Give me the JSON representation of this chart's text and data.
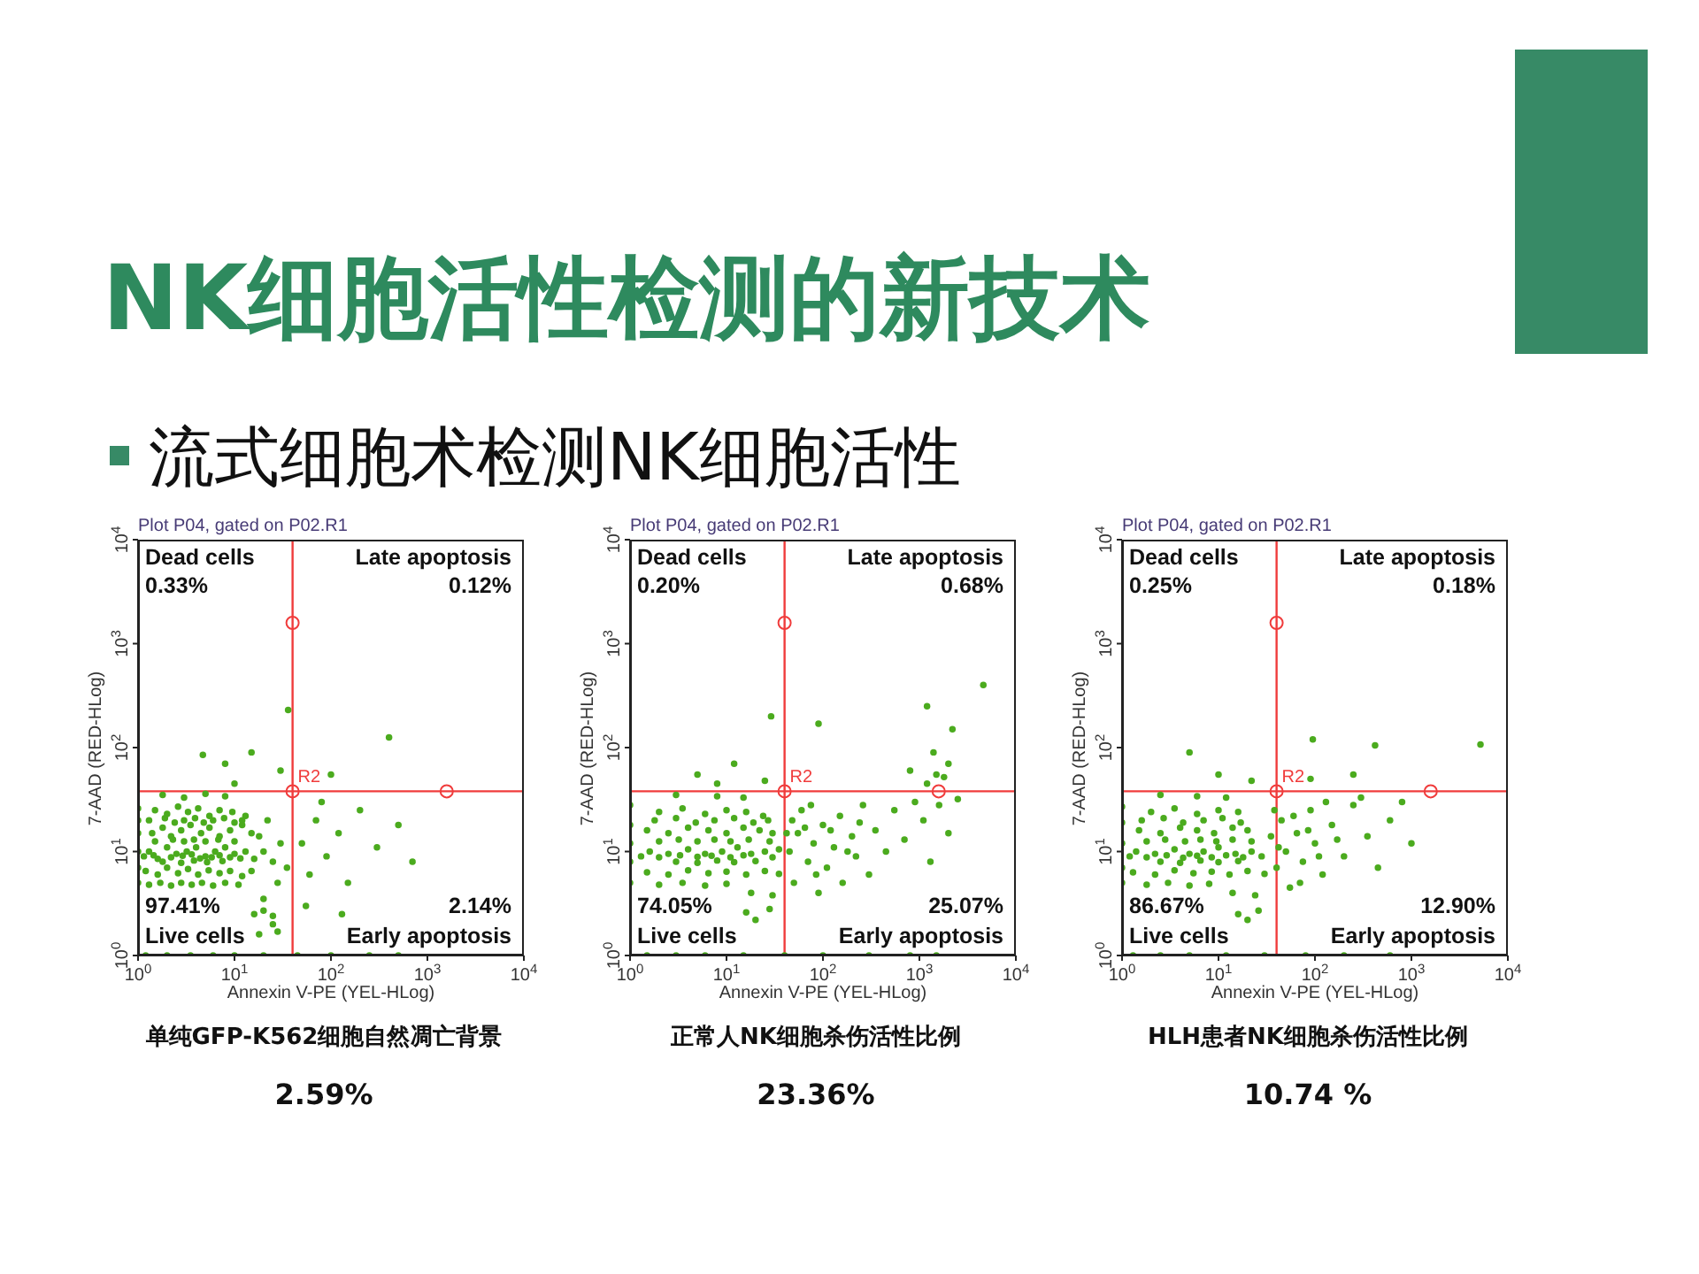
{
  "chart_data": [
    {
      "type": "other",
      "title": "NK细胞活性检测的新技术",
      "subtitle": "流式细胞术检测NK细胞活性"
    },
    {
      "type": "scatter",
      "title": "Plot P04, gated on P02.R1",
      "xlabel": "Annexin V-PE (YEL-HLog)",
      "ylabel": "7-AAD (RED-HLog)",
      "log": "xy",
      "xlim": [
        1,
        10000
      ],
      "ylim": [
        1,
        10000
      ],
      "xticks": [
        {
          "value": 1,
          "label": "10$^{0}$"
        },
        {
          "value": 10,
          "label": "10$^{1}$"
        },
        {
          "value": 100,
          "label": "10$^{2}$"
        },
        {
          "value": 1000,
          "label": "10$^{3}$"
        },
        {
          "value": 10000,
          "label": "10$^{4}$"
        }
      ],
      "yticks": [
        {
          "value": 1,
          "label": "10$^{0}$"
        },
        {
          "value": 10,
          "label": "10$^{1}$"
        },
        {
          "value": 100,
          "label": "10$^{2}$"
        },
        {
          "value": 1000,
          "label": "10$^{3}$"
        },
        {
          "value": 10000,
          "label": "10$^{4}$"
        }
      ],
      "color": "#4bab1e",
      "marker": "circle",
      "x": [
        1.3,
        1.6,
        2,
        2.5,
        3.2,
        4,
        5,
        6.3,
        8,
        10,
        13,
        16,
        1.4,
        1.8,
        2.2,
        2.8,
        3.5,
        4.5,
        5.5,
        7,
        9,
        12,
        15,
        1.5,
        2,
        2.6,
        3.3,
        4.2,
        5.5,
        7,
        9.5,
        13,
        1.2,
        1.6,
        2,
        2.6,
        3.3,
        4.2,
        5.4,
        7,
        9,
        12,
        15,
        1.3,
        1.7,
        2.2,
        2.8,
        3.6,
        4.6,
        6,
        8,
        11,
        16,
        20,
        25,
        1.8,
        2.8,
        3.8,
        5.2,
        7.5,
        1.5,
        2.3,
        3,
        3.8,
        5,
        6.8,
        10,
        1.8,
        3,
        5,
        8,
        18,
        28,
        1,
        1,
        1,
        1,
        1,
        1,
        1.2,
        2,
        3.5,
        6,
        10,
        20,
        45,
        100,
        250,
        500,
        20,
        25,
        18,
        22,
        30,
        28,
        35,
        20,
        25,
        50,
        60,
        70,
        90,
        120,
        150,
        200,
        300,
        500,
        700,
        55,
        80,
        130,
        4.7,
        8,
        15,
        30,
        10,
        36,
        100,
        400,
        1.3,
        1.9,
        2.4,
        3,
        3.9,
        4.8,
        6,
        7.8,
        10,
        12,
        1.15,
        1.45,
        2.2,
        2.9,
        3.6,
        4.4,
        5.8,
        7,
        9,
        11.5
      ],
      "values": [
        10,
        8.5,
        11,
        9.5,
        10,
        11,
        9,
        10,
        11,
        9.5,
        10,
        8.5,
        15,
        17,
        14,
        16,
        18,
        15,
        17,
        14,
        16,
        18,
        15,
        25,
        23,
        27,
        24,
        26,
        22,
        25,
        24,
        22,
        6.5,
        6,
        7,
        6.2,
        6.8,
        6,
        6.6,
        6.2,
        6.5,
        5.8,
        6.5,
        4.8,
        5,
        4.7,
        5,
        4.8,
        5,
        4.7,
        5,
        4.8,
        2.5,
        2.7,
        2.4,
        8,
        7.8,
        8.2,
        7.9,
        8.1,
        12.5,
        13,
        12.5,
        13,
        12.5,
        13,
        12.5,
        35,
        33,
        36,
        34,
        1.6,
        1.7,
        5,
        7,
        10,
        15,
        20,
        26,
        1,
        1,
        1,
        1,
        1,
        1,
        1,
        1,
        1,
        1,
        10,
        8,
        14,
        20,
        12,
        5,
        7,
        3.5,
        2,
        12,
        6,
        20,
        9,
        15,
        5,
        25,
        11,
        18,
        8,
        3,
        30,
        2.5,
        85,
        70,
        90,
        60,
        45,
        230,
        55,
        125,
        20,
        21,
        19,
        20,
        21,
        19,
        20,
        21,
        19,
        20,
        9,
        9.2,
        8.8,
        9.1,
        9.4,
        8.6,
        8.8,
        9.2,
        8.8,
        8.6
      ],
      "ref_lines": [
        {
          "axis": "x",
          "value": 40,
          "color": "#f03c3c"
        },
        {
          "axis": "y",
          "value": 38,
          "color": "#f03c3c"
        }
      ],
      "annotations": [
        "Dead cells",
        "0.33%",
        "Late apoptosis",
        "0.12%",
        "97.41%",
        "Live cells",
        "2.14%",
        "Early apoptosis",
        "R2",
        "单纯GFP-K562细胞自然凋亡背景",
        "2.59%"
      ]
    },
    {
      "type": "scatter",
      "title": "Plot P04, gated on P02.R1",
      "xlabel": "Annexin V-PE (YEL-HLog)",
      "ylabel": "7-AAD (RED-HLog)",
      "log": "xy",
      "xlim": [
        1,
        10000
      ],
      "ylim": [
        1,
        10000
      ],
      "xticks": [
        {
          "value": 1,
          "label": "10$^{0}$"
        },
        {
          "value": 10,
          "label": "10$^{1}$"
        },
        {
          "value": 100,
          "label": "10$^{2}$"
        },
        {
          "value": 1000,
          "label": "10$^{3}$"
        },
        {
          "value": 10000,
          "label": "10$^{4}$"
        }
      ],
      "yticks": [
        {
          "value": 1,
          "label": "10$^{0}$"
        },
        {
          "value": 10,
          "label": "10$^{1}$"
        },
        {
          "value": 100,
          "label": "10$^{2}$"
        },
        {
          "value": 1000,
          "label": "10$^{3}$"
        },
        {
          "value": 10000,
          "label": "10$^{4}$"
        }
      ],
      "color": "#4bab1e",
      "marker": "circle",
      "x": [
        1.6,
        2.5,
        4,
        6,
        9,
        13,
        18,
        25,
        35,
        1.5,
        2.5,
        4,
        6.5,
        10,
        15,
        22,
        30,
        2,
        3.5,
        6,
        10,
        16,
        24,
        1.5,
        2.5,
        4,
        6.5,
        10,
        16,
        25,
        35,
        2,
        3.5,
        6,
        10,
        18,
        30,
        16,
        20,
        28,
        3,
        5,
        8,
        12,
        20,
        2,
        3.2,
        5,
        7.5,
        11,
        17,
        28,
        3,
        8,
        15,
        1,
        1,
        1,
        1,
        1,
        1.5,
        3,
        6,
        15,
        40,
        100,
        300,
        800,
        1500,
        45,
        50,
        55,
        60,
        70,
        80,
        90,
        100,
        110,
        130,
        150,
        160,
        200,
        220,
        260,
        300,
        350,
        450,
        550,
        700,
        900,
        1100,
        1300,
        1600,
        2000,
        2500,
        5,
        12,
        25,
        29,
        8,
        90,
        1200,
        1200,
        1500,
        1800,
        2000,
        1400,
        800,
        2200,
        4600,
        1.8,
        3,
        4.8,
        7.5,
        12,
        19,
        27,
        1.3,
        2,
        3.3,
        5,
        7,
        11,
        15,
        30,
        42,
        48,
        65,
        75,
        85,
        120,
        180,
        240
      ],
      "values": [
        10,
        9.5,
        10.5,
        9.5,
        10,
        11,
        9.5,
        10,
        10.5,
        16,
        15,
        17,
        16,
        15,
        17,
        16,
        15,
        24,
        26,
        23,
        25,
        24,
        22,
        6.3,
        6,
        6.6,
        6.2,
        6.4,
        6,
        6.5,
        6.1,
        4.8,
        5,
        4.7,
        4.9,
        4,
        3.8,
        2.6,
        2.2,
        2.8,
        8,
        7.8,
        8.2,
        7.9,
        8.1,
        12.5,
        13,
        12.5,
        13,
        12.5,
        13,
        12.5,
        35,
        34,
        33,
        5,
        8,
        12,
        18,
        28,
        1,
        1,
        1,
        1,
        1,
        1,
        1,
        1,
        1,
        10,
        5,
        15,
        25,
        8,
        12,
        4,
        18,
        7,
        11,
        22,
        5,
        14,
        9,
        28,
        6,
        16,
        10,
        25,
        13,
        30,
        20,
        8,
        28,
        15,
        32,
        55,
        70,
        48,
        200,
        45,
        170,
        250,
        45,
        55,
        52,
        70,
        90,
        60,
        150,
        400,
        20,
        21,
        19,
        20,
        21,
        19,
        20,
        9,
        8.8,
        9.2,
        8.9,
        9.1,
        8.8,
        9.2,
        8.8,
        15,
        20,
        17,
        28,
        6,
        16,
        10,
        19
      ],
      "ref_lines": [
        {
          "axis": "x",
          "value": 40,
          "color": "#f03c3c"
        },
        {
          "axis": "y",
          "value": 38,
          "color": "#f03c3c"
        }
      ],
      "annotations": [
        "Dead cells",
        "0.20%",
        "Late apoptosis",
        "0.68%",
        "74.05%",
        "Live cells",
        "25.07%",
        "Early apoptosis",
        "R2",
        "正常人NK细胞杀伤活性比例",
        "23.36%"
      ]
    },
    {
      "type": "scatter",
      "title": "Plot P04, gated on P02.R1",
      "xlabel": "Annexin V-PE (YEL-HLog)",
      "ylabel": "7-AAD (RED-HLog)",
      "log": "xy",
      "xlim": [
        1,
        10000
      ],
      "ylim": [
        1,
        10000
      ],
      "xticks": [
        {
          "value": 1,
          "label": "10$^{0}$"
        },
        {
          "value": 10,
          "label": "10$^{1}$"
        },
        {
          "value": 100,
          "label": "10$^{2}$"
        },
        {
          "value": 1000,
          "label": "10$^{3}$"
        },
        {
          "value": 10000,
          "label": "10$^{4}$"
        }
      ],
      "yticks": [
        {
          "value": 1,
          "label": "10$^{0}$"
        },
        {
          "value": 10,
          "label": "10$^{1}$"
        },
        {
          "value": 100,
          "label": "10$^{2}$"
        },
        {
          "value": 1000,
          "label": "10$^{3}$"
        },
        {
          "value": 10000,
          "label": "10$^{4}$"
        }
      ],
      "color": "#4bab1e",
      "marker": "circle",
      "x": [
        1.4,
        2.2,
        3.5,
        5,
        7,
        10,
        15,
        22,
        1.5,
        2.5,
        4,
        6,
        9,
        14,
        20,
        2,
        3.5,
        6,
        10,
        16,
        1.3,
        2.2,
        3.5,
        5.5,
        8.5,
        13,
        20,
        30,
        1.8,
        3,
        5,
        8,
        14,
        24,
        16,
        20,
        26,
        2.5,
        4,
        6.5,
        10,
        16,
        1.8,
        2.8,
        4.5,
        6.5,
        9.5,
        14,
        22,
        2.5,
        6,
        12,
        1,
        1,
        1,
        1,
        1,
        1.3,
        2.5,
        5,
        12,
        30,
        80,
        200,
        600,
        35,
        40,
        45,
        50,
        55,
        65,
        75,
        90,
        100,
        120,
        150,
        200,
        250,
        350,
        450,
        600,
        800,
        1000,
        300,
        5,
        10,
        22,
        95,
        420,
        5200,
        90,
        250,
        1.6,
        2.7,
        4.3,
        7,
        11,
        17,
        1.2,
        1.8,
        2.9,
        4.3,
        6,
        8.5,
        12,
        18,
        28,
        38,
        42,
        60,
        70,
        85,
        110,
        170,
        130
      ],
      "values": [
        10,
        9.5,
        10.5,
        9.5,
        10,
        11,
        9.5,
        10,
        16,
        15,
        17,
        16,
        15,
        17,
        16,
        24,
        26,
        23,
        25,
        24,
        6.3,
        6,
        6.6,
        6.2,
        6.4,
        6,
        6.5,
        6.1,
        4.8,
        5,
        4.7,
        4.9,
        4,
        3.8,
        2.5,
        2.2,
        2.7,
        8,
        7.8,
        8.2,
        7.9,
        8.1,
        12.5,
        13,
        12.5,
        13,
        12.5,
        13,
        12.5,
        35,
        34,
        33,
        5,
        7,
        12,
        19,
        27,
        1,
        1,
        1,
        1,
        1,
        1,
        1,
        1,
        14,
        7,
        20,
        10,
        4.5,
        15,
        8,
        25,
        12,
        6,
        18,
        9,
        28,
        14,
        7,
        20,
        30,
        12,
        33,
        90,
        55,
        48,
        120,
        105,
        107,
        50,
        55,
        20,
        21,
        19,
        20,
        21,
        19,
        9,
        8.8,
        9.2,
        8.7,
        9.1,
        8.8,
        9.2,
        8.8,
        9,
        25,
        11,
        22,
        5,
        16,
        9,
        13,
        30
      ],
      "ref_lines": [
        {
          "axis": "x",
          "value": 40,
          "color": "#f03c3c"
        },
        {
          "axis": "y",
          "value": 38,
          "color": "#f03c3c"
        }
      ],
      "annotations": [
        "Dead cells",
        "0.25%",
        "Late apoptosis",
        "0.18%",
        "86.67%",
        "Live cells",
        "12.90%",
        "Early apoptosis",
        "R2",
        "HLH患者NK细胞杀伤活性比例",
        "10.74 %"
      ]
    }
  ]
}
